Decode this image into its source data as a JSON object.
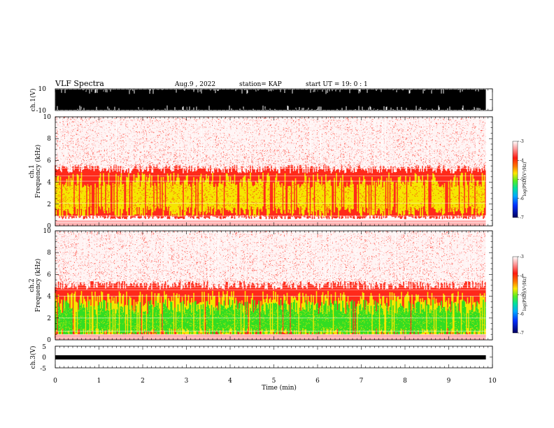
{
  "header": {
    "title": "VLF Spectra",
    "date": "Aug.9  , 2022",
    "station": "station= KAP",
    "start_ut": "start  UT =   19: 0  : 1"
  },
  "chart_data": [
    {
      "type": "line",
      "name": "ch1-waveform",
      "ylabel": "ch.1(V)",
      "ylim": [
        -10,
        10
      ],
      "yticks": [
        "10",
        "-10"
      ],
      "xlim": [
        0,
        10
      ],
      "note": "dense waveform saturating near +/-10 V"
    },
    {
      "type": "heatmap",
      "name": "ch1-spectrogram",
      "ylabel_line1": "ch.1",
      "ylabel_line2": "Frequency (kHz)",
      "ylim": [
        0,
        10
      ],
      "yticks": [
        "0",
        "2",
        "4",
        "6",
        "8",
        "10"
      ],
      "xlim": [
        0,
        10
      ],
      "bands": [
        {
          "f_lo": 0.8,
          "f_hi": 5.2,
          "level": "red"
        },
        {
          "f_lo": 1.3,
          "f_hi": 4.2,
          "level": "yellow"
        }
      ],
      "colorbar": {
        "label": "log(PSD)(V²/Hz)",
        "ticks": [
          "-3",
          "-4",
          "-5",
          "-6",
          "-7"
        ],
        "range": [
          -7,
          -3
        ]
      }
    },
    {
      "type": "heatmap",
      "name": "ch2-spectrogram",
      "ylabel_line1": "ch.2",
      "ylabel_line2": "Frequency (kHz)",
      "ylim": [
        0,
        10
      ],
      "yticks": [
        "0",
        "2",
        "4",
        "6",
        "8",
        "10"
      ],
      "xlim": [
        0,
        10
      ],
      "bands": [
        {
          "f_lo": 0.2,
          "f_hi": 5.0,
          "level": "red"
        },
        {
          "f_lo": 0.4,
          "f_hi": 3.8,
          "level": "yellow"
        },
        {
          "f_lo": 0.6,
          "f_hi": 3.0,
          "level": "green"
        }
      ],
      "colorbar": {
        "label": "log(PSD)(V²/Hz)",
        "ticks": [
          "-3",
          "-4",
          "-5",
          "-6",
          "-7"
        ],
        "range": [
          -7,
          -3
        ]
      }
    },
    {
      "type": "line",
      "name": "ch3-waveform",
      "ylabel": "ch.3(V)",
      "ylim": [
        -5,
        5
      ],
      "yticks": [
        "5",
        "0",
        "-5"
      ],
      "xlim": [
        0,
        10
      ],
      "note": "thin band centered near 0 V"
    }
  ],
  "xaxis": {
    "label": "Time  (min)",
    "ticks": [
      "0",
      "1",
      "2",
      "3",
      "4",
      "5",
      "6",
      "7",
      "8",
      "9",
      "10"
    ],
    "range": [
      0,
      10
    ],
    "data_end": 9.85
  },
  "colors": {
    "red": "#ff2a1a",
    "pink": "#ffb0b0",
    "yellow": "#f5e600",
    "green": "#33dd22",
    "orange": "#ff8800"
  }
}
